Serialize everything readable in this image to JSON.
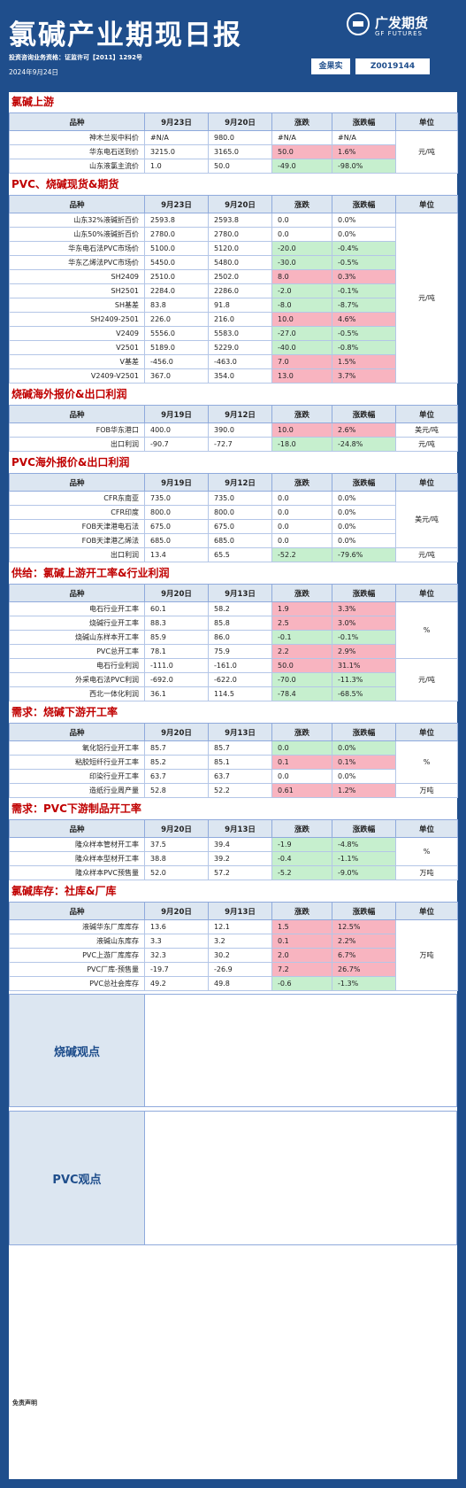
{
  "header": {
    "title": "氯碱产业期现日报",
    "brand": "广发期货",
    "brand_en": "GF FUTURES",
    "qualification": "投资咨询业务资格：证监许可【2011】1292号",
    "date": "2024年9月24日",
    "analyst_label": "金果实",
    "analyst_id": "Z0019144"
  },
  "colors": {
    "brand_blue": "#1f4e8c",
    "section_red": "#c00000",
    "up_pink": "#f8b4c0",
    "down_green": "#c6efce",
    "header_bg": "#dce6f1"
  },
  "tables": [
    {
      "title": "氯碱上游",
      "headers": [
        "品种",
        "9月23日",
        "9月20日",
        "涨跌",
        "涨跌幅",
        "单位"
      ],
      "rows": [
        {
          "name": "神木兰炭中料价",
          "v1": "#N/A",
          "v2": "980.0",
          "chg": "#N/A",
          "pct": "#N/A",
          "dir": ""
        },
        {
          "name": "华东电石送到价",
          "v1": "3215.0",
          "v2": "3165.0",
          "chg": "50.0",
          "pct": "1.6%",
          "dir": "pos"
        },
        {
          "name": "山东液氯主流价",
          "v1": "1.0",
          "v2": "50.0",
          "chg": "-49.0",
          "pct": "-98.0%",
          "dir": "neg"
        }
      ],
      "unit_groups": [
        {
          "text": "元/吨",
          "start": 0,
          "span": 3
        }
      ]
    },
    {
      "title": "PVC、烧碱现货&期货",
      "headers": [
        "品种",
        "9月23日",
        "9月20日",
        "涨跌",
        "涨跌幅",
        "单位"
      ],
      "rows": [
        {
          "name": "山东32%液碱折百价",
          "v1": "2593.8",
          "v2": "2593.8",
          "chg": "0.0",
          "pct": "0.0%",
          "dir": ""
        },
        {
          "name": "山东50%液碱折百价",
          "v1": "2780.0",
          "v2": "2780.0",
          "chg": "0.0",
          "pct": "0.0%",
          "dir": ""
        },
        {
          "name": "华东电石法PVC市场价",
          "v1": "5100.0",
          "v2": "5120.0",
          "chg": "-20.0",
          "pct": "-0.4%",
          "dir": "neg"
        },
        {
          "name": "华东乙烯法PVC市场价",
          "v1": "5450.0",
          "v2": "5480.0",
          "chg": "-30.0",
          "pct": "-0.5%",
          "dir": "neg"
        },
        {
          "name": "SH2409",
          "v1": "2510.0",
          "v2": "2502.0",
          "chg": "8.0",
          "pct": "0.3%",
          "dir": "pos"
        },
        {
          "name": "SH2501",
          "v1": "2284.0",
          "v2": "2286.0",
          "chg": "-2.0",
          "pct": "-0.1%",
          "dir": "neg"
        },
        {
          "name": "SH基差",
          "v1": "83.8",
          "v2": "91.8",
          "chg": "-8.0",
          "pct": "-8.7%",
          "dir": "neg"
        },
        {
          "name": "SH2409-2501",
          "v1": "226.0",
          "v2": "216.0",
          "chg": "10.0",
          "pct": "4.6%",
          "dir": "pos"
        },
        {
          "name": "V2409",
          "v1": "5556.0",
          "v2": "5583.0",
          "chg": "-27.0",
          "pct": "-0.5%",
          "dir": "neg"
        },
        {
          "name": "V2501",
          "v1": "5189.0",
          "v2": "5229.0",
          "chg": "-40.0",
          "pct": "-0.8%",
          "dir": "neg"
        },
        {
          "name": "V基差",
          "v1": "-456.0",
          "v2": "-463.0",
          "chg": "7.0",
          "pct": "1.5%",
          "dir": "pos"
        },
        {
          "name": "V2409-V2501",
          "v1": "367.0",
          "v2": "354.0",
          "chg": "13.0",
          "pct": "3.7%",
          "dir": "pos"
        }
      ],
      "unit_groups": [
        {
          "text": "元/吨",
          "start": 0,
          "span": 12
        }
      ]
    },
    {
      "title": "烧碱海外报价&出口利润",
      "headers": [
        "品种",
        "9月19日",
        "9月12日",
        "涨跌",
        "涨跌幅",
        "单位"
      ],
      "rows": [
        {
          "name": "FOB华东港口",
          "v1": "400.0",
          "v2": "390.0",
          "chg": "10.0",
          "pct": "2.6%",
          "dir": "pos"
        },
        {
          "name": "出口利润",
          "v1": "-90.7",
          "v2": "-72.7",
          "chg": "-18.0",
          "pct": "-24.8%",
          "dir": "neg"
        }
      ],
      "unit_groups": [
        {
          "text": "美元/吨",
          "start": 0,
          "span": 1
        },
        {
          "text": "元/吨",
          "start": 1,
          "span": 1
        }
      ]
    },
    {
      "title": "PVC海外报价&出口利润",
      "headers": [
        "品种",
        "9月19日",
        "9月12日",
        "涨跌",
        "涨跌幅",
        "单位"
      ],
      "rows": [
        {
          "name": "CFR东南亚",
          "v1": "735.0",
          "v2": "735.0",
          "chg": "0.0",
          "pct": "0.0%",
          "dir": ""
        },
        {
          "name": "CFR印度",
          "v1": "800.0",
          "v2": "800.0",
          "chg": "0.0",
          "pct": "0.0%",
          "dir": ""
        },
        {
          "name": "FOB天津港电石法",
          "v1": "675.0",
          "v2": "675.0",
          "chg": "0.0",
          "pct": "0.0%",
          "dir": ""
        },
        {
          "name": "FOB天津港乙烯法",
          "v1": "685.0",
          "v2": "685.0",
          "chg": "0.0",
          "pct": "0.0%",
          "dir": ""
        },
        {
          "name": "出口利润",
          "v1": "13.4",
          "v2": "65.5",
          "chg": "-52.2",
          "pct": "-79.6%",
          "dir": "neg"
        }
      ],
      "unit_groups": [
        {
          "text": "美元/吨",
          "start": 0,
          "span": 4
        },
        {
          "text": "元/吨",
          "start": 4,
          "span": 1
        }
      ]
    },
    {
      "title": "供给：氯碱上游开工率&行业利润",
      "headers": [
        "品种",
        "9月20日",
        "9月13日",
        "涨跌",
        "涨跌幅",
        "单位"
      ],
      "rows": [
        {
          "name": "电石行业开工率",
          "v1": "60.1",
          "v2": "58.2",
          "chg": "1.9",
          "pct": "3.3%",
          "dir": "pos"
        },
        {
          "name": "烧碱行业开工率",
          "v1": "88.3",
          "v2": "85.8",
          "chg": "2.5",
          "pct": "3.0%",
          "dir": "pos"
        },
        {
          "name": "烧碱山东样本开工率",
          "v1": "85.9",
          "v2": "86.0",
          "chg": "-0.1",
          "pct": "-0.1%",
          "dir": "neg"
        },
        {
          "name": "PVC总开工率",
          "v1": "78.1",
          "v2": "75.9",
          "chg": "2.2",
          "pct": "2.9%",
          "dir": "pos"
        },
        {
          "name": "电石行业利润",
          "v1": "-111.0",
          "v2": "-161.0",
          "chg": "50.0",
          "pct": "31.1%",
          "dir": "pos"
        },
        {
          "name": "外采电石法PVC利润",
          "v1": "-692.0",
          "v2": "-622.0",
          "chg": "-70.0",
          "pct": "-11.3%",
          "dir": "neg"
        },
        {
          "name": "西北一体化利润",
          "v1": "36.1",
          "v2": "114.5",
          "chg": "-78.4",
          "pct": "-68.5%",
          "dir": "neg"
        }
      ],
      "unit_groups": [
        {
          "text": "%",
          "start": 0,
          "span": 4
        },
        {
          "text": "元/吨",
          "start": 4,
          "span": 3
        }
      ]
    },
    {
      "title": "需求：烧碱下游开工率",
      "headers": [
        "品种",
        "9月20日",
        "9月13日",
        "涨跌",
        "涨跌幅",
        "单位"
      ],
      "rows": [
        {
          "name": "氧化铝行业开工率",
          "v1": "85.7",
          "v2": "85.7",
          "chg": "0.0",
          "pct": "0.0%",
          "dir": "neg"
        },
        {
          "name": "粘胶短纤行业开工率",
          "v1": "85.2",
          "v2": "85.1",
          "chg": "0.1",
          "pct": "0.1%",
          "dir": "pos"
        },
        {
          "name": "印染行业开工率",
          "v1": "63.7",
          "v2": "63.7",
          "chg": "0.0",
          "pct": "0.0%",
          "dir": ""
        },
        {
          "name": "造纸行业周产量",
          "v1": "52.8",
          "v2": "52.2",
          "chg": "0.61",
          "pct": "1.2%",
          "dir": "pos"
        }
      ],
      "unit_groups": [
        {
          "text": "%",
          "start": 0,
          "span": 3
        },
        {
          "text": "万吨",
          "start": 3,
          "span": 1
        }
      ]
    },
    {
      "title": "需求：PVC下游制品开工率",
      "headers": [
        "品种",
        "9月20日",
        "9月13日",
        "涨跌",
        "涨跌幅",
        "单位"
      ],
      "rows": [
        {
          "name": "隆众样本管材开工率",
          "v1": "37.5",
          "v2": "39.4",
          "chg": "-1.9",
          "pct": "-4.8%",
          "dir": "neg"
        },
        {
          "name": "隆众样本型材开工率",
          "v1": "38.8",
          "v2": "39.2",
          "chg": "-0.4",
          "pct": "-1.1%",
          "dir": "neg"
        },
        {
          "name": "隆众样本PVC预售量",
          "v1": "52.0",
          "v2": "57.2",
          "chg": "-5.2",
          "pct": "-9.0%",
          "dir": "neg"
        }
      ],
      "unit_groups": [
        {
          "text": "%",
          "start": 0,
          "span": 2
        },
        {
          "text": "万吨",
          "start": 2,
          "span": 1
        }
      ]
    },
    {
      "title": "氯碱库存：社库&厂库",
      "headers": [
        "品种",
        "9月20日",
        "9月13日",
        "涨跌",
        "涨跌幅",
        "单位"
      ],
      "rows": [
        {
          "name": "液碱华东厂库库存",
          "v1": "13.6",
          "v2": "12.1",
          "chg": "1.5",
          "pct": "12.5%",
          "dir": "pos"
        },
        {
          "name": "液碱山东库存",
          "v1": "3.3",
          "v2": "3.2",
          "chg": "0.1",
          "pct": "2.2%",
          "dir": "pos"
        },
        {
          "name": "PVC上游厂库库存",
          "v1": "32.3",
          "v2": "30.2",
          "chg": "2.0",
          "pct": "6.7%",
          "dir": "pos"
        },
        {
          "name": "PVC厂库-预售量",
          "v1": "-19.7",
          "v2": "-26.9",
          "chg": "7.2",
          "pct": "26.7%",
          "dir": "pos"
        },
        {
          "name": "PVC总社会库存",
          "v1": "49.2",
          "v2": "49.8",
          "chg": "-0.6",
          "pct": "-1.3%",
          "dir": "neg"
        }
      ],
      "unit_groups": [
        {
          "text": "万吨",
          "start": 0,
          "span": 5
        }
      ]
    }
  ],
  "views": {
    "caustic_label": "烧碱观点",
    "caustic_text": "",
    "pvc_label": "PVC观点",
    "pvc_text": ""
  },
  "footer": {
    "source": "",
    "disclaimer_title": "免责声明",
    "disclaimer_text": ""
  }
}
